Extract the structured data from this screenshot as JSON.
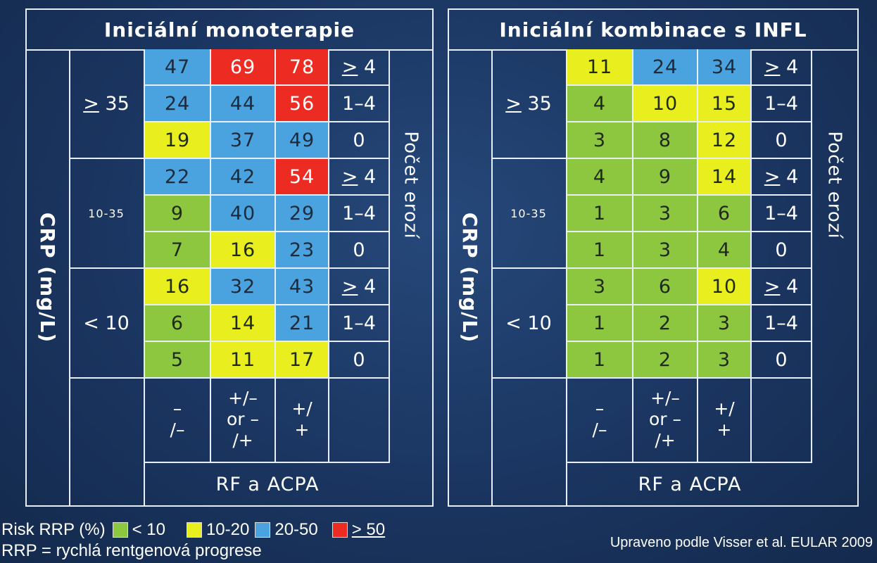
{
  "panels": [
    {
      "title": "Iniciální monoterapie",
      "crp_label": "CRP (mg/L)",
      "erosion_label": "Počet erozí",
      "rf_title": "RF a ACPA",
      "groups": [
        "> 35",
        "10-35",
        "< 10"
      ],
      "rf_categories": [
        "–\n/–",
        "+/–\nor –\n/+",
        "+/\n+"
      ],
      "erosion_levels": [
        "> 4",
        "1–4",
        "0"
      ],
      "rows": [
        {
          "values": [
            "47",
            "69",
            "78"
          ],
          "colors": [
            "blue",
            "red",
            "red"
          ]
        },
        {
          "values": [
            "24",
            "44",
            "56"
          ],
          "colors": [
            "blue",
            "blue",
            "red"
          ]
        },
        {
          "values": [
            "19",
            "37",
            "49"
          ],
          "colors": [
            "yellow",
            "blue",
            "blue"
          ]
        },
        {
          "values": [
            "22",
            "42",
            "54"
          ],
          "colors": [
            "blue",
            "blue",
            "red"
          ]
        },
        {
          "values": [
            "9",
            "40",
            "29"
          ],
          "colors": [
            "green",
            "blue",
            "blue"
          ]
        },
        {
          "values": [
            "7",
            "16",
            "23"
          ],
          "colors": [
            "green",
            "yellow",
            "blue"
          ]
        },
        {
          "values": [
            "16",
            "32",
            "43"
          ],
          "colors": [
            "yellow",
            "blue",
            "blue"
          ]
        },
        {
          "values": [
            "6",
            "14",
            "21"
          ],
          "colors": [
            "green",
            "yellow",
            "blue"
          ]
        },
        {
          "values": [
            "5",
            "11",
            "17"
          ],
          "colors": [
            "green",
            "yellow",
            "yellow"
          ]
        }
      ]
    },
    {
      "title": "Iniciální kombinace s INFL",
      "crp_label": "CRP (mg/L)",
      "erosion_label": "Počet erozí",
      "rf_title": "RF a ACPA",
      "groups": [
        "> 35",
        "10-35",
        "< 10"
      ],
      "rf_categories": [
        "–\n/–",
        "+/–\nor –\n/+",
        "+/\n+"
      ],
      "erosion_levels": [
        "> 4",
        "1–4",
        "0"
      ],
      "rows": [
        {
          "values": [
            "11",
            "24",
            "34"
          ],
          "colors": [
            "yellow",
            "blue",
            "blue"
          ]
        },
        {
          "values": [
            "4",
            "10",
            "15"
          ],
          "colors": [
            "green",
            "yellow",
            "yellow"
          ]
        },
        {
          "values": [
            "3",
            "8",
            "12"
          ],
          "colors": [
            "green",
            "green",
            "yellow"
          ]
        },
        {
          "values": [
            "4",
            "9",
            "14"
          ],
          "colors": [
            "green",
            "green",
            "yellow"
          ]
        },
        {
          "values": [
            "1",
            "3",
            "6"
          ],
          "colors": [
            "green",
            "green",
            "green"
          ]
        },
        {
          "values": [
            "1",
            "3",
            "4"
          ],
          "colors": [
            "green",
            "green",
            "green"
          ]
        },
        {
          "values": [
            "3",
            "6",
            "10"
          ],
          "colors": [
            "green",
            "green",
            "yellow"
          ]
        },
        {
          "values": [
            "1",
            "2",
            "3"
          ],
          "colors": [
            "green",
            "green",
            "green"
          ]
        },
        {
          "values": [
            "1",
            "2",
            "3"
          ],
          "colors": [
            "green",
            "green",
            "green"
          ]
        }
      ]
    }
  ],
  "legend": {
    "title": "Risk RRP (%)",
    "items": [
      {
        "label": "< 10",
        "color": "#8dc63f"
      },
      {
        "label": "10-20",
        "color": "#e9ee1e"
      },
      {
        "label": "20-50",
        "color": "#4aa3df"
      },
      {
        "label": "> 50",
        "color": "#ec2b22"
      }
    ],
    "definition": "RRP = rychlá rentgenová progrese"
  },
  "source": "Upraveno podle Visser et al. EULAR 2009"
}
